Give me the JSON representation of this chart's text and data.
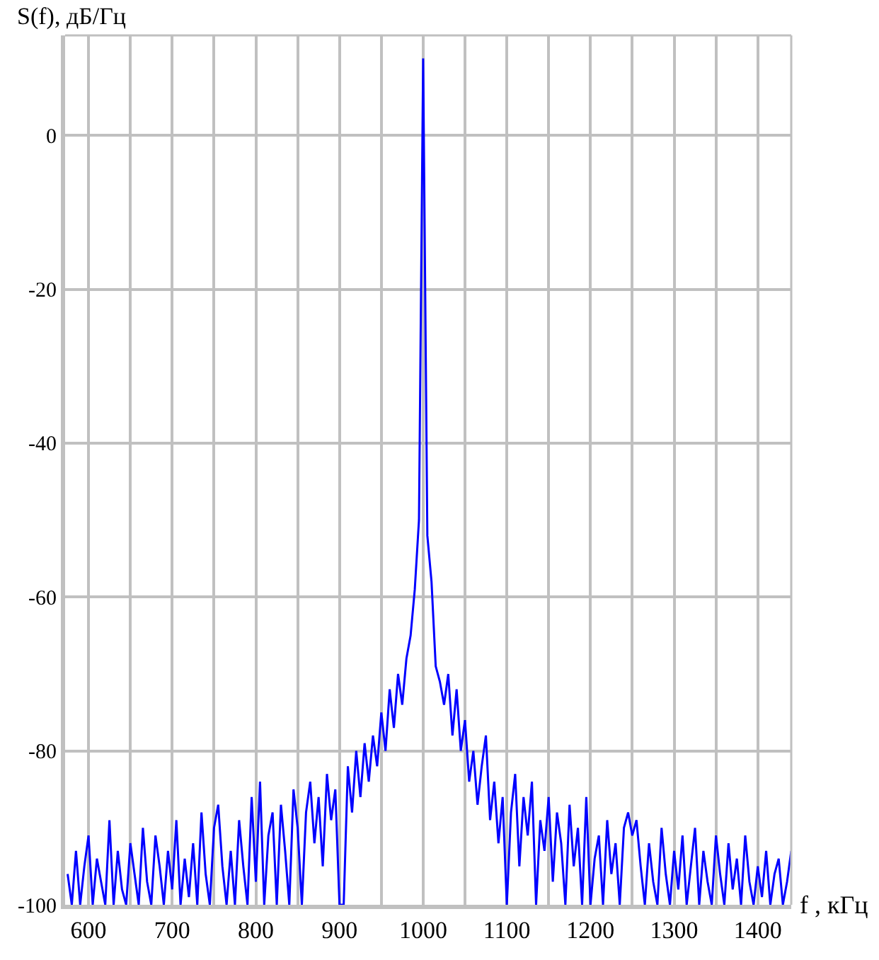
{
  "chart_data": {
    "type": "line",
    "ylabel": "S(f), дБ/Гц",
    "xlabel": "f , кГц",
    "x": [
      575,
      580,
      585,
      590,
      595,
      600,
      605,
      610,
      615,
      620,
      625,
      630,
      635,
      640,
      645,
      650,
      655,
      660,
      665,
      670,
      675,
      680,
      685,
      690,
      695,
      700,
      705,
      710,
      715,
      720,
      725,
      730,
      735,
      740,
      745,
      750,
      755,
      760,
      765,
      770,
      775,
      780,
      785,
      790,
      795,
      800,
      805,
      810,
      815,
      820,
      825,
      830,
      835,
      840,
      845,
      850,
      855,
      860,
      865,
      870,
      875,
      880,
      885,
      890,
      895,
      900,
      905,
      910,
      915,
      920,
      925,
      930,
      935,
      940,
      945,
      950,
      955,
      960,
      965,
      970,
      975,
      980,
      985,
      990,
      995,
      1000,
      1005,
      1010,
      1015,
      1020,
      1025,
      1030,
      1035,
      1040,
      1045,
      1050,
      1055,
      1060,
      1065,
      1070,
      1075,
      1080,
      1085,
      1090,
      1095,
      1100,
      1105,
      1110,
      1115,
      1120,
      1125,
      1130,
      1135,
      1140,
      1145,
      1150,
      1155,
      1160,
      1165,
      1170,
      1175,
      1180,
      1185,
      1190,
      1195,
      1200,
      1205,
      1210,
      1215,
      1220,
      1225,
      1230,
      1235,
      1240,
      1245,
      1250,
      1255,
      1260,
      1265,
      1270,
      1275,
      1280,
      1285,
      1290,
      1295,
      1300,
      1305,
      1310,
      1315,
      1320,
      1325,
      1330,
      1335,
      1340,
      1345,
      1350,
      1355,
      1360,
      1365,
      1370,
      1375,
      1380,
      1385,
      1390,
      1395,
      1400,
      1405,
      1410,
      1415,
      1420,
      1425,
      1430,
      1435,
      1440
    ],
    "series": [
      {
        "color": "#0000ff",
        "values": [
          -96,
          -100,
          -93,
          -100,
          -95,
          -91,
          -100,
          -94,
          -97,
          -100,
          -89,
          -100,
          -93,
          -98,
          -100,
          -92,
          -96,
          -100,
          -90,
          -97,
          -100,
          -91,
          -95,
          -100,
          -93,
          -98,
          -89,
          -100,
          -94,
          -99,
          -92,
          -100,
          -88,
          -96,
          -100,
          -90,
          -87,
          -95,
          -100,
          -93,
          -100,
          -89,
          -95,
          -100,
          -86,
          -97,
          -84,
          -100,
          -91,
          -88,
          -100,
          -87,
          -93,
          -100,
          -85,
          -90,
          -100,
          -88,
          -84,
          -92,
          -86,
          -95,
          -83,
          -89,
          -85,
          -100,
          -100,
          -82,
          -88,
          -80,
          -86,
          -79,
          -84,
          -78,
          -82,
          -75,
          -80,
          -72,
          -77,
          -70,
          -74,
          -68,
          -65,
          -59,
          -50,
          10,
          -52,
          -58,
          -69,
          -71,
          -74,
          -70,
          -78,
          -72,
          -80,
          -76,
          -84,
          -80,
          -87,
          -82,
          -78,
          -89,
          -84,
          -92,
          -86,
          -100,
          -88,
          -83,
          -95,
          -86,
          -91,
          -84,
          -100,
          -89,
          -93,
          -86,
          -97,
          -88,
          -92,
          -100,
          -87,
          -95,
          -90,
          -100,
          -86,
          -100,
          -94,
          -91,
          -100,
          -89,
          -96,
          -92,
          -100,
          -90,
          -88,
          -91,
          -89,
          -95,
          -100,
          -92,
          -97,
          -100,
          -90,
          -96,
          -100,
          -93,
          -98,
          -91,
          -100,
          -95,
          -90,
          -100,
          -93,
          -97,
          -100,
          -91,
          -96,
          -100,
          -92,
          -98,
          -94,
          -100,
          -91,
          -97,
          -100,
          -95,
          -99,
          -93,
          -100,
          -96,
          -94,
          -100,
          -97,
          -93
        ]
      }
    ],
    "xlim": [
      572,
      1440
    ],
    "ylim": [
      -100,
      13
    ],
    "xticks": [
      600,
      {
        "value": 650,
        "label": null
      },
      700,
      {
        "value": 750,
        "label": null
      },
      800,
      {
        "value": 850,
        "label": null
      },
      900,
      {
        "value": 950,
        "label": null
      },
      1000,
      {
        "value": 1050,
        "label": null
      },
      1100,
      {
        "value": 1150,
        "label": null
      },
      1200,
      {
        "value": 1250,
        "label": null
      },
      1300,
      {
        "value": 1350,
        "label": null
      },
      1400
    ],
    "yticks": [
      -100,
      -80,
      -60,
      -40,
      -20,
      0
    ],
    "grid": true,
    "marker": "none",
    "line_style": "solid"
  }
}
